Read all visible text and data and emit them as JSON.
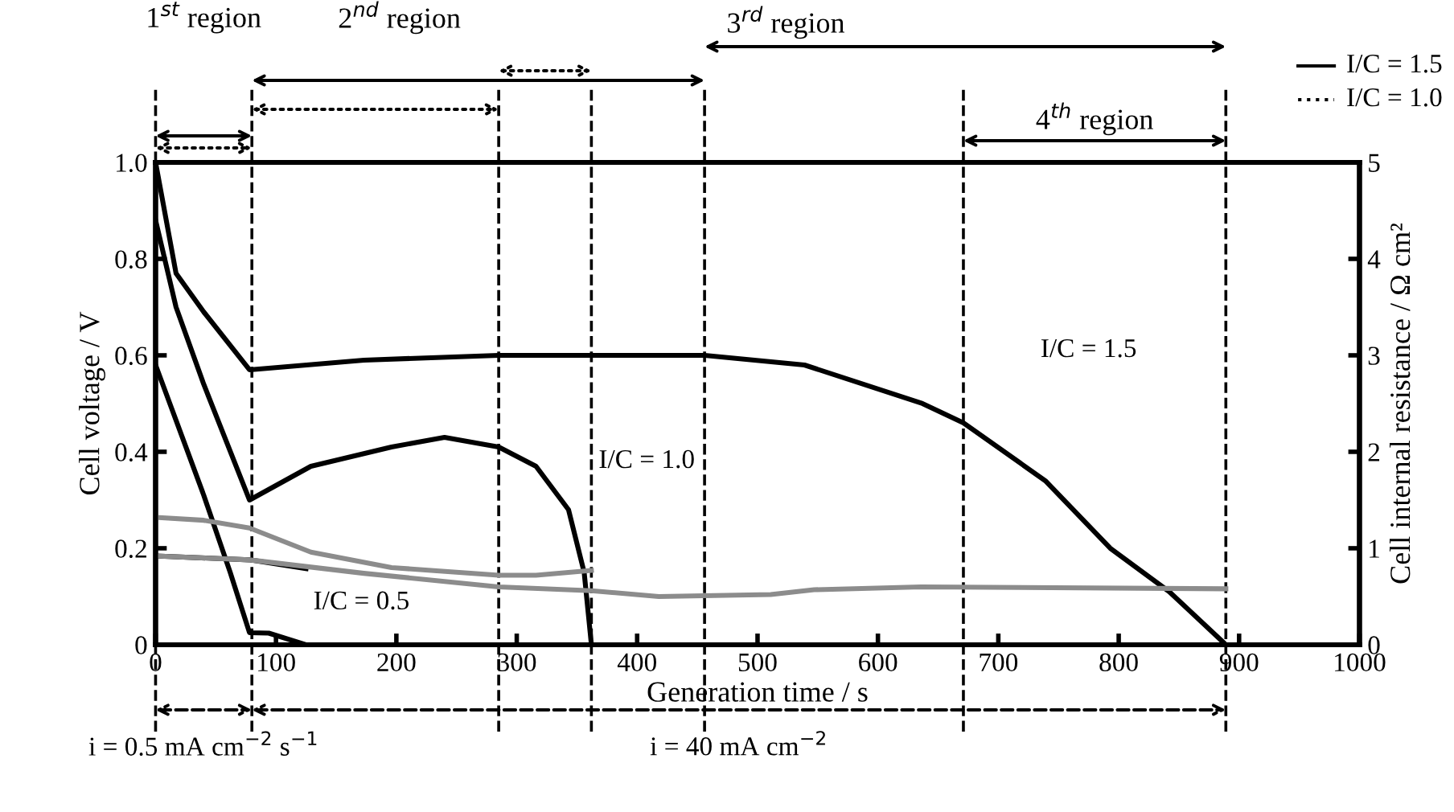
{
  "chart_data": {
    "type": "line",
    "xlabel": "Generation time / s",
    "ylabel": "Cell voltage / V",
    "y2label": "Cell internal resistance / Ω cm²",
    "xlim": [
      0,
      1000
    ],
    "xticks": [
      0,
      100,
      200,
      300,
      400,
      500,
      600,
      700,
      800,
      900,
      1000
    ],
    "ylim": [
      0,
      1
    ],
    "yticks": [
      0,
      0.2,
      0.4,
      0.6,
      0.8,
      {
        "value": 1,
        "label": "1.0"
      }
    ],
    "y2lim": [
      0,
      5
    ],
    "y2ticks": [
      0,
      1,
      2,
      3,
      4,
      5
    ],
    "grid": false,
    "marker": "none",
    "line_style": "solid",
    "series": [
      {
        "color": "#000000",
        "x": [
          0,
          17,
          40,
          78,
          173,
          285,
          362,
          456,
          539,
          637,
          671,
          739,
          793,
          842,
          889
        ],
        "values": [
          1.0,
          0.77,
          0.69,
          0.57,
          0.59,
          0.6,
          0.6,
          0.6,
          0.58,
          0.5,
          0.46,
          0.34,
          0.2,
          0.11,
          0
        ]
      },
      {
        "color": "#000000",
        "x": [
          0,
          17,
          40,
          78,
          129,
          196,
          240,
          285,
          316,
          343,
          356,
          362
        ],
        "values": [
          0.88,
          0.7,
          0.54,
          0.3,
          0.37,
          0.41,
          0.43,
          0.41,
          0.37,
          0.28,
          0.15,
          0
        ]
      },
      {
        "color": "#000000",
        "x": [
          0,
          40,
          62,
          78,
          94,
          125
        ],
        "values": [
          0.58,
          0.31,
          0.15,
          0.025,
          0.024,
          0
        ]
      },
      {
        "color": "#000000",
        "axis": "y2",
        "x": [
          0,
          78,
          125
        ],
        "values": [
          0.92,
          0.88,
          0.79
        ]
      },
      {
        "color": "#8c8c8c",
        "axis": "y2",
        "x": [
          0,
          40,
          78,
          129,
          196,
          285,
          316,
          362
        ],
        "values": [
          1.32,
          1.29,
          1.21,
          0.96,
          0.8,
          0.72,
          0.72,
          0.77
        ]
      },
      {
        "color": "#8c8c8c",
        "axis": "y2",
        "x": [
          0,
          78,
          173,
          285,
          362,
          418,
          511,
          547,
          636,
          889
        ],
        "values": [
          0.92,
          0.88,
          0.74,
          0.6,
          0.56,
          0.5,
          0.52,
          0.57,
          0.6,
          0.58
        ]
      }
    ],
    "ref_lines": [
      {
        "axis": "x",
        "value": 0,
        "line_style": "dashed"
      },
      {
        "axis": "x",
        "value": 80,
        "line_style": "dashed"
      },
      {
        "axis": "x",
        "value": 285,
        "line_style": "dashed"
      },
      {
        "axis": "x",
        "value": 362,
        "line_style": "dashed"
      },
      {
        "axis": "x",
        "value": 456,
        "line_style": "dashed"
      },
      {
        "axis": "x",
        "value": 671,
        "line_style": "dashed"
      },
      {
        "axis": "x",
        "value": 889,
        "line_style": "dashed"
      }
    ],
    "annotations": [
      "I/C = 1.0",
      "I/C = 0.5",
      "I/C = 1.5",
      "1$^{st}$ region",
      "2$^{nd}$ region",
      "3$^{rd}$ region",
      "4$^{th}$ region",
      "I/C = 1.5",
      "I/C = 1.0",
      "i = 0.5 mA cm$^{−2}$ s$^{−1}$",
      "i = 40 mA cm$^{−2}$"
    ]
  }
}
